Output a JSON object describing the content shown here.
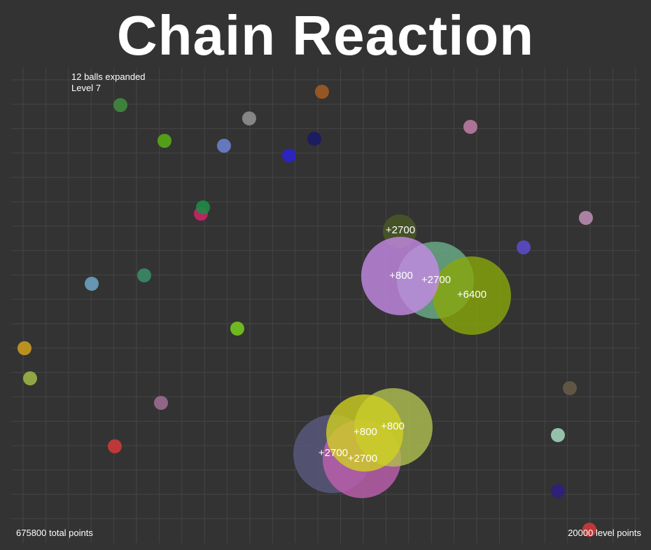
{
  "title": "Chain Reaction",
  "hud": {
    "balls_expanded": "12 balls expanded",
    "level": "Level 7",
    "total_points": "675800 total points",
    "level_points": "20000 level points"
  },
  "colors": {
    "background": "#333333",
    "grid": "#444444",
    "text": "#ffffff"
  },
  "small_balls": [
    {
      "color": "#a05a22"
    },
    {
      "color": "#3e8a3e"
    },
    {
      "color": "#8e8e8e"
    },
    {
      "color": "#1a1a66"
    },
    {
      "color": "#56aa16"
    },
    {
      "color": "#6a7ecc"
    },
    {
      "color": "#2a22cc"
    },
    {
      "color": "#b87a9e"
    },
    {
      "color": "#cc2266"
    },
    {
      "color": "#1e8a46"
    },
    {
      "color": "#b88aae"
    },
    {
      "color": "#5a4ac6"
    },
    {
      "color": "#6aa0c0"
    },
    {
      "color": "#3a8a66"
    },
    {
      "color": "#76c61e"
    },
    {
      "color": "#c89a1e"
    },
    {
      "color": "#9ab446"
    },
    {
      "color": "#9a6a8e"
    },
    {
      "color": "#665a46"
    },
    {
      "color": "#cc3a3a"
    },
    {
      "color": "#9ed0b6"
    },
    {
      "color": "#301e80"
    },
    {
      "color": "#cc3a3a"
    }
  ],
  "expanded_balls": [
    {
      "color": "#4a5a26",
      "score": "+2700"
    },
    {
      "color": "#6ab08a",
      "score": "+2700"
    },
    {
      "color": "#8aa80a",
      "score": "+6400"
    },
    {
      "color": "#c68ae6",
      "score": "+800"
    },
    {
      "color": "#5a5a80",
      "score": "+2700"
    },
    {
      "color": "#c060b0",
      "score": "+2700"
    },
    {
      "color": "#b0c050",
      "score": "+800"
    },
    {
      "color": "#d0d020",
      "score": "+800"
    }
  ]
}
